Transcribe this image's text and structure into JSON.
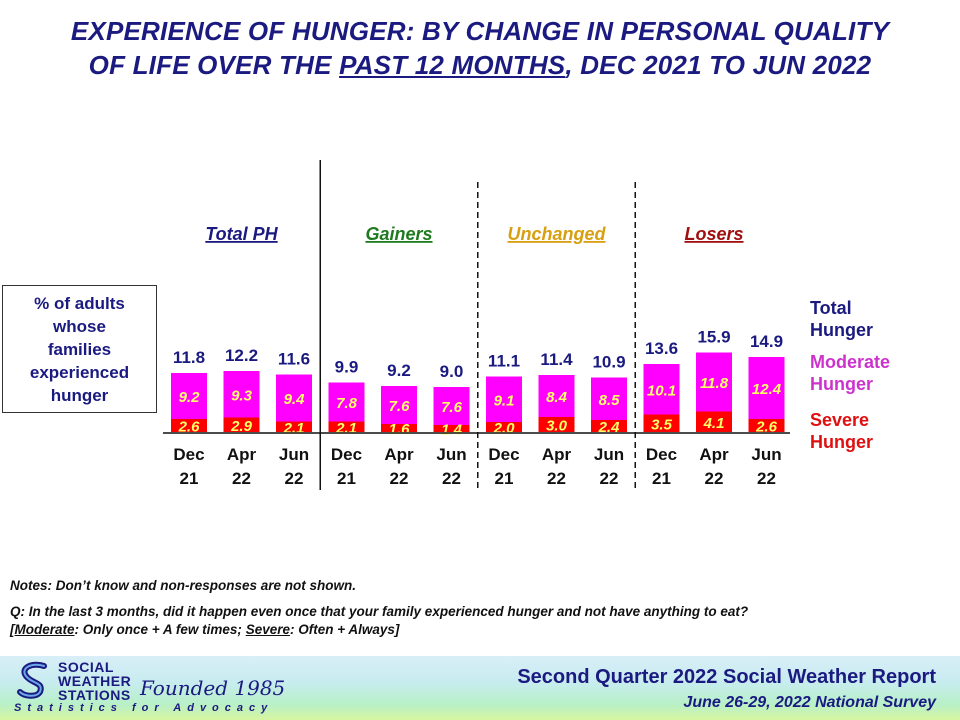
{
  "title": {
    "line1": "EXPERIENCE OF HUNGER: BY CHANGE IN PERSONAL QUALITY",
    "line2_pre": "OF LIFE OVER THE ",
    "line2_underlined": "PAST 12 MONTHS",
    "line2_post": ", DEC 2021 TO JUN 2022"
  },
  "y_label": [
    "% of adults",
    "whose",
    "families",
    "experienced",
    "hunger"
  ],
  "chart_data": {
    "type": "stacked-bar",
    "groups": [
      {
        "name": "Total PH",
        "color": "#1a1a80",
        "periods": [
          [
            "Dec",
            "21"
          ],
          [
            "Apr",
            "22"
          ],
          [
            "Jun",
            "22"
          ]
        ],
        "total": [
          11.8,
          12.2,
          11.6
        ],
        "moderate": [
          9.2,
          9.3,
          9.4
        ],
        "severe": [
          2.6,
          2.9,
          2.1
        ]
      },
      {
        "name": "Gainers",
        "color": "#1f7a1f",
        "periods": [
          [
            "Dec",
            "21"
          ],
          [
            "Apr",
            "22"
          ],
          [
            "Jun",
            "22"
          ]
        ],
        "total": [
          9.9,
          9.2,
          9.0
        ],
        "moderate": [
          7.8,
          7.6,
          7.6
        ],
        "severe": [
          2.1,
          1.6,
          1.4
        ]
      },
      {
        "name": "Unchanged",
        "color": "#d8a010",
        "periods": [
          [
            "Dec",
            "21"
          ],
          [
            "Apr",
            "22"
          ],
          [
            "Jun",
            "22"
          ]
        ],
        "total": [
          11.1,
          11.4,
          10.9
        ],
        "moderate": [
          9.1,
          8.4,
          8.5
        ],
        "severe": [
          2.0,
          3.0,
          2.4
        ]
      },
      {
        "name": "Losers",
        "color": "#a01010",
        "periods": [
          [
            "Dec",
            "21"
          ],
          [
            "Apr",
            "22"
          ],
          [
            "Jun",
            "22"
          ]
        ],
        "total": [
          13.6,
          15.9,
          14.9
        ],
        "moderate": [
          10.1,
          11.8,
          12.4
        ],
        "severe": [
          3.5,
          4.1,
          2.6
        ]
      }
    ],
    "legend": [
      {
        "label": [
          "Total",
          "Hunger"
        ],
        "color": "#1a1a80"
      },
      {
        "label": [
          "Moderate",
          "Hunger"
        ],
        "color": "#cc33cc"
      },
      {
        "label": [
          "Severe",
          "Hunger"
        ],
        "color": "#e01010"
      }
    ],
    "colors": {
      "moderate": "#ff00ff",
      "severe": "#ff0000",
      "total_label": "#1a1a80",
      "segment_label": "#ffff66"
    },
    "ylim": [
      0,
      16
    ]
  },
  "notes": {
    "line1": "Notes: Don’t know and non-responses are not shown.",
    "line2": "Q: In the last 3 months, did it happen even once that your family experienced hunger and not have anything to eat?",
    "line3_p1": "[",
    "line3_moderate": "Moderate",
    "line3_p2": ": Only once + A few times; ",
    "line3_severe": "Severe",
    "line3_p3": ": Often + Always]"
  },
  "footer": {
    "org_lines": [
      "SOCIAL",
      "WEATHER",
      "STATIONS"
    ],
    "founded": "Founded 1985",
    "tagline": "Statistics for Advocacy",
    "report_title": "Second Quarter 2022 Social Weather Report",
    "survey": "June 26-29, 2022 National Survey"
  }
}
